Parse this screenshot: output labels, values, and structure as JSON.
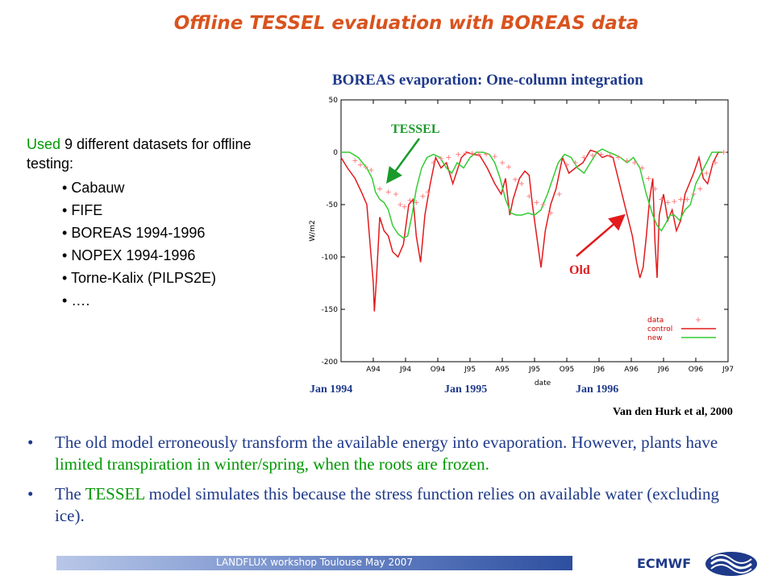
{
  "slide": {
    "title": "Offline TESSEL evaluation with BOREAS data",
    "chart_title": "BOREAS evaporation: One-column integration",
    "intro": {
      "part1": "Used",
      "part2": " 9 different datasets for offline testing:"
    },
    "datasets": [
      "Cabauw",
      "FIFE",
      "BOREAS 1994-1996",
      "NOPEX 1994-1996",
      "Torne-Kalix (PILPS2E)",
      "…."
    ],
    "date_labels": [
      "Jan 1994",
      "Jan 1995",
      "Jan 1996"
    ],
    "citation": "Van den Hurk et al, 2000",
    "bullet1": {
      "a": "The old model erroneously transform the available energy into evaporation. However, plants have ",
      "b": "limited transpiration in winter/spring, when the roots are frozen."
    },
    "bullet2": {
      "a": "The ",
      "b": "TESSEL",
      "c": " model simulates this because the stress function relies on available water (excluding ice)."
    },
    "footer": "LANDFLUX workshop Toulouse May 2007",
    "org": "ECMWF",
    "colors": {
      "title": "#d9531e",
      "text_blue": "#1f3a8a",
      "text_green": "#009900",
      "control": "#e31a1c",
      "new": "#33cc33",
      "data": "#ff8080",
      "arrow_tessel": "#1a9a2a",
      "arrow_old": "#e31a1c"
    },
    "icons": {
      "logo": "ecmwf-logo"
    }
  },
  "chart_data": {
    "type": "line",
    "title": "BOREAS evaporation: One-column integration",
    "xlabel": "date",
    "ylabel": "W/m2",
    "ylim": [
      -200,
      50
    ],
    "xlim": [
      0,
      36
    ],
    "yticks": [
      50,
      0,
      -50,
      -100,
      -150,
      -200
    ],
    "xticks": [
      {
        "x": 3,
        "label": "A94"
      },
      {
        "x": 6,
        "label": "J94"
      },
      {
        "x": 9,
        "label": "O94"
      },
      {
        "x": 12,
        "label": "J95"
      },
      {
        "x": 15,
        "label": "A95"
      },
      {
        "x": 18,
        "label": "J95"
      },
      {
        "x": 21,
        "label": "O95"
      },
      {
        "x": 24,
        "label": "J96"
      },
      {
        "x": 27,
        "label": "A96"
      },
      {
        "x": 30,
        "label": "J96"
      },
      {
        "x": 33,
        "label": "O96"
      },
      {
        "x": 36,
        "label": "J97"
      }
    ],
    "legend": {
      "position": "bottom-right",
      "entries": [
        "data",
        "control",
        "new"
      ]
    },
    "annotations": {
      "tessel": "TESSEL",
      "old": "Old"
    },
    "series": [
      {
        "name": "control",
        "x": [
          0,
          0.6,
          1.3,
          1.9,
          2.4,
          3.0,
          3.1,
          3.3,
          3.6,
          4.0,
          4.4,
          4.8,
          5.3,
          5.8,
          6.3,
          6.7,
          7.0,
          7.4,
          7.8,
          8.3,
          8.8,
          9.3,
          9.8,
          10.4,
          11.2,
          11.7,
          12.3,
          12.9,
          13.6,
          14.3,
          14.9,
          15.3,
          15.7,
          16.0,
          16.6,
          17.1,
          17.5,
          17.8,
          18.2,
          18.6,
          19.0,
          19.5,
          20.0,
          20.6,
          21.2,
          21.8,
          22.5,
          23.2,
          23.8,
          24.3,
          24.8,
          25.3,
          25.9,
          26.5,
          27.1,
          27.5,
          27.8,
          28.1,
          28.4,
          28.7,
          29.0,
          29.2,
          29.4,
          29.6,
          30.0,
          30.4,
          30.8,
          31.2,
          31.6,
          32.0,
          32.4,
          32.8,
          33.3,
          33.7,
          34.1,
          34.6,
          35.1,
          35.5
        ],
        "y": [
          -5,
          -15,
          -25,
          -38,
          -50,
          -125,
          -152,
          -120,
          -62,
          -75,
          -80,
          -95,
          -100,
          -88,
          -50,
          -45,
          -80,
          -105,
          -60,
          -30,
          -5,
          -15,
          -10,
          -30,
          -5,
          0,
          -2,
          -3,
          -15,
          -30,
          -40,
          -25,
          -60,
          -45,
          -25,
          -18,
          -22,
          -50,
          -80,
          -110,
          -75,
          -50,
          -35,
          -5,
          -20,
          -15,
          -10,
          2,
          0,
          -5,
          -3,
          -5,
          -30,
          -55,
          -80,
          -105,
          -120,
          -110,
          -80,
          -45,
          -25,
          -85,
          -120,
          -60,
          -40,
          -65,
          -55,
          -75,
          -65,
          -40,
          -30,
          -20,
          -5,
          -25,
          -30,
          -10,
          0,
          0
        ]
      },
      {
        "name": "new",
        "x": [
          0,
          0.8,
          1.6,
          2.4,
          2.9,
          3.2,
          3.6,
          4.0,
          4.4,
          4.8,
          5.3,
          5.8,
          6.2,
          6.6,
          7.0,
          7.5,
          8.0,
          8.6,
          9.2,
          9.8,
          10.3,
          10.8,
          11.4,
          12.0,
          12.6,
          13.2,
          13.8,
          14.3,
          14.8,
          15.3,
          15.8,
          16.3,
          16.8,
          17.4,
          18.0,
          18.6,
          19.2,
          19.7,
          20.2,
          20.8,
          21.4,
          22.0,
          22.6,
          23.2,
          23.8,
          24.3,
          24.9,
          25.4,
          26.0,
          26.6,
          27.2,
          27.8,
          28.4,
          29.0,
          29.4,
          29.8,
          30.2,
          30.6,
          31.0,
          31.5,
          32.0,
          32.5,
          33.0,
          33.5,
          34.0,
          34.5,
          35.0,
          35.5
        ],
        "y": [
          0,
          0,
          -5,
          -15,
          -25,
          -38,
          -45,
          -48,
          -55,
          -70,
          -78,
          -82,
          -80,
          -60,
          -35,
          -15,
          -5,
          -2,
          -5,
          -15,
          -20,
          -10,
          -15,
          -5,
          0,
          0,
          -2,
          -10,
          -25,
          -45,
          -58,
          -60,
          -60,
          -58,
          -60,
          -55,
          -40,
          -25,
          -10,
          -2,
          -5,
          -15,
          -20,
          -10,
          0,
          3,
          0,
          -2,
          -5,
          -10,
          -5,
          -15,
          -40,
          -60,
          -70,
          -75,
          -68,
          -60,
          -60,
          -65,
          -55,
          -50,
          -30,
          -20,
          -10,
          0,
          0,
          0
        ]
      },
      {
        "name": "data",
        "x": [
          1.3,
          1.8,
          2.3,
          2.8,
          3.6,
          4.4,
          5.1,
          5.5,
          5.9,
          6.4,
          7.0,
          7.6,
          8.1,
          8.6,
          9.3,
          10.0,
          10.9,
          11.6,
          12.2,
          12.8,
          13.5,
          14.3,
          15.0,
          15.6,
          16.2,
          16.8,
          17.5,
          18.2,
          18.8,
          19.5,
          20.3,
          21.0,
          21.8,
          22.6,
          23.4,
          24.2,
          25.0,
          25.8,
          26.6,
          27.3,
          28.0,
          28.6,
          29.2,
          29.8,
          30.4,
          31.0,
          31.6,
          32.2,
          32.8,
          33.4,
          34.0,
          34.8,
          35.6
        ],
        "y": [
          -8,
          -12,
          -14,
          -17,
          -35,
          -38,
          -40,
          -50,
          -52,
          -46,
          -48,
          -42,
          -38,
          -10,
          -6,
          -5,
          -2,
          -1,
          -1,
          -2,
          -2,
          -4,
          -10,
          -14,
          -26,
          -30,
          -42,
          -48,
          -50,
          -58,
          -40,
          -12,
          -10,
          -5,
          -3,
          -2,
          -3,
          -5,
          -8,
          -10,
          -15,
          -25,
          -35,
          -45,
          -48,
          -47,
          -45,
          -45,
          -40,
          -35,
          -20,
          -10,
          0
        ]
      }
    ]
  }
}
